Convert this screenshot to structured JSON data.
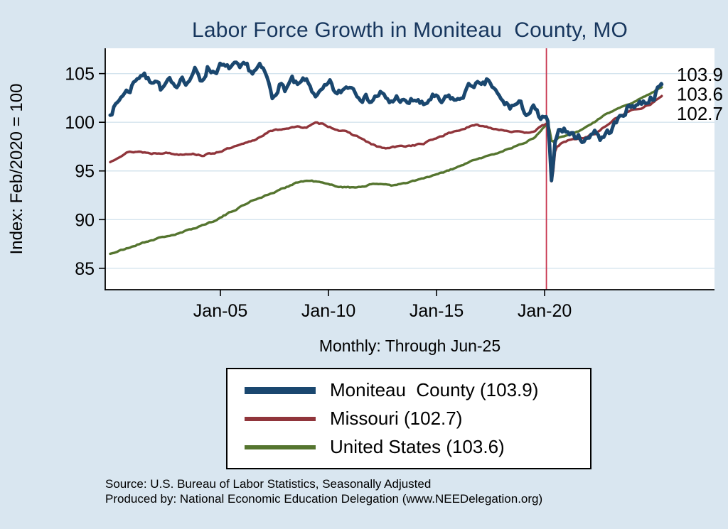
{
  "notes": {
    "source_line1": "Source: U.S. Bureau of Labor Statistics, Seasonally Adjusted",
    "source_line2": "Produced by: National Economic Education Delegation (www.NEEDelegation.org)"
  },
  "legend": {
    "items": [
      {
        "label": "Moniteau  County (103.9)",
        "color": "#1a476f",
        "swatch_height": 10
      },
      {
        "label": "Missouri (102.7)",
        "color": "#90353b",
        "swatch_height": 6
      },
      {
        "label": "United States (103.6)",
        "color": "#55752f",
        "swatch_height": 6
      }
    ]
  },
  "colors": {
    "background": "#d9e6f0",
    "plot_bg": "#ffffff",
    "grid": "#d4e4ee",
    "title": "#17365d",
    "axis": "#000000",
    "vline": "#c8374f"
  },
  "chart_data": {
    "type": "line",
    "title": "Labor Force Growth in Moniteau  County, MO",
    "subtitle": "Monthly: Through Jun-25",
    "xlabel": "",
    "ylabel": "Index: Feb/2020 = 100",
    "x_tick_years": [
      2005,
      2010,
      2015,
      2020
    ],
    "x_tick_labels": [
      "Jan-05",
      "Jan-10",
      "Jan-15",
      "Jan-20"
    ],
    "y_ticks": [
      85,
      90,
      95,
      100,
      105
    ],
    "ylim": [
      82.8,
      107.6
    ],
    "xlim_years": [
      1999.67,
      2027.86
    ],
    "grid": true,
    "legend_position": "below",
    "vline_year": 2020.083,
    "end_labels": [
      {
        "text": "103.9",
        "y": 104.9
      },
      {
        "text": "103.6",
        "y": 102.9
      },
      {
        "text": "102.7",
        "y": 100.9
      }
    ],
    "series": [
      {
        "id": "moniteau-county",
        "name": "Moniteau County",
        "color": "#1a476f",
        "width": 5,
        "jitter": 0.38,
        "seed": 7,
        "end_value": 103.9,
        "keypoints": [
          [
            1999.9,
            101.1
          ],
          [
            2000.2,
            101.8
          ],
          [
            2000.5,
            103.0
          ],
          [
            2000.8,
            103.3
          ],
          [
            2001.1,
            104.6
          ],
          [
            2001.4,
            105.0
          ],
          [
            2001.7,
            104.2
          ],
          [
            2002.0,
            104.6
          ],
          [
            2002.3,
            103.3
          ],
          [
            2002.6,
            104.3
          ],
          [
            2002.9,
            103.2
          ],
          [
            2003.2,
            104.9
          ],
          [
            2003.5,
            104.1
          ],
          [
            2003.8,
            105.4
          ],
          [
            2004.1,
            104.1
          ],
          [
            2004.4,
            105.6
          ],
          [
            2004.7,
            105.2
          ],
          [
            2005.0,
            105.8
          ],
          [
            2005.3,
            105.4
          ],
          [
            2005.6,
            105.9
          ],
          [
            2005.9,
            105.3
          ],
          [
            2006.2,
            105.7
          ],
          [
            2006.5,
            105.1
          ],
          [
            2006.8,
            105.6
          ],
          [
            2007.1,
            104.9
          ],
          [
            2007.4,
            102.5
          ],
          [
            2007.7,
            103.9
          ],
          [
            2008.0,
            103.4
          ],
          [
            2008.3,
            104.3
          ],
          [
            2008.6,
            103.5
          ],
          [
            2008.9,
            104.4
          ],
          [
            2009.2,
            103.4
          ],
          [
            2009.5,
            102.7
          ],
          [
            2009.8,
            103.3
          ],
          [
            2010.1,
            103.9
          ],
          [
            2010.4,
            102.7
          ],
          [
            2010.7,
            103.4
          ],
          [
            2011.0,
            103.9
          ],
          [
            2011.3,
            103.2
          ],
          [
            2011.6,
            102.6
          ],
          [
            2012.0,
            102.3
          ],
          [
            2012.4,
            103.0
          ],
          [
            2012.8,
            101.9
          ],
          [
            2013.2,
            102.6
          ],
          [
            2013.6,
            101.8
          ],
          [
            2014.0,
            102.4
          ],
          [
            2014.4,
            101.6
          ],
          [
            2014.8,
            102.7
          ],
          [
            2015.2,
            101.9
          ],
          [
            2015.6,
            102.6
          ],
          [
            2016.0,
            102.1
          ],
          [
            2016.4,
            103.4
          ],
          [
            2016.8,
            104.1
          ],
          [
            2017.1,
            103.4
          ],
          [
            2017.4,
            104.3
          ],
          [
            2017.7,
            103.2
          ],
          [
            2018.0,
            102.1
          ],
          [
            2018.4,
            101.6
          ],
          [
            2018.8,
            101.9
          ],
          [
            2019.2,
            100.9
          ],
          [
            2019.5,
            101.4
          ],
          [
            2019.8,
            100.3
          ],
          [
            2020.08,
            100.2
          ],
          [
            2020.17,
            100.0
          ],
          [
            2020.33,
            92.9
          ],
          [
            2020.5,
            98.6
          ],
          [
            2020.75,
            99.6
          ],
          [
            2021.0,
            99.1
          ],
          [
            2021.3,
            98.7
          ],
          [
            2021.6,
            98.4
          ],
          [
            2022.0,
            98.2
          ],
          [
            2022.3,
            99.4
          ],
          [
            2022.6,
            98.3
          ],
          [
            2023.0,
            99.1
          ],
          [
            2023.4,
            100.2
          ],
          [
            2023.8,
            101.4
          ],
          [
            2024.2,
            101.9
          ],
          [
            2024.6,
            102.1
          ],
          [
            2025.0,
            102.6
          ],
          [
            2025.25,
            103.3
          ],
          [
            2025.42,
            103.9
          ]
        ]
      },
      {
        "id": "missouri",
        "name": "Missouri",
        "color": "#90353b",
        "width": 3.4,
        "jitter": 0.07,
        "seed": 13,
        "end_value": 102.7,
        "keypoints": [
          [
            1999.9,
            95.9
          ],
          [
            2000.3,
            96.5
          ],
          [
            2000.7,
            96.9
          ],
          [
            2001.2,
            97.0
          ],
          [
            2001.8,
            96.8
          ],
          [
            2002.4,
            96.9
          ],
          [
            2003.0,
            96.7
          ],
          [
            2003.6,
            96.8
          ],
          [
            2004.2,
            96.6
          ],
          [
            2004.8,
            96.9
          ],
          [
            2005.4,
            97.3
          ],
          [
            2006.0,
            97.7
          ],
          [
            2006.6,
            98.2
          ],
          [
            2007.2,
            99.0
          ],
          [
            2007.8,
            99.3
          ],
          [
            2008.4,
            99.5
          ],
          [
            2009.0,
            99.5
          ],
          [
            2009.4,
            99.9
          ],
          [
            2009.8,
            99.8
          ],
          [
            2010.2,
            99.4
          ],
          [
            2010.8,
            99.0
          ],
          [
            2011.4,
            98.5
          ],
          [
            2012.0,
            97.7
          ],
          [
            2012.6,
            97.3
          ],
          [
            2013.2,
            97.5
          ],
          [
            2013.8,
            97.6
          ],
          [
            2014.4,
            97.8
          ],
          [
            2015.0,
            98.4
          ],
          [
            2015.6,
            98.9
          ],
          [
            2016.2,
            99.3
          ],
          [
            2016.8,
            99.7
          ],
          [
            2017.2,
            99.6
          ],
          [
            2017.8,
            99.3
          ],
          [
            2018.4,
            99.1
          ],
          [
            2019.0,
            98.9
          ],
          [
            2019.5,
            99.1
          ],
          [
            2019.9,
            99.6
          ],
          [
            2020.17,
            100.0
          ],
          [
            2020.33,
            93.3
          ],
          [
            2020.5,
            97.3
          ],
          [
            2020.8,
            97.9
          ],
          [
            2021.2,
            98.2
          ],
          [
            2021.8,
            98.4
          ],
          [
            2022.4,
            98.9
          ],
          [
            2023.0,
            99.9
          ],
          [
            2023.5,
            100.7
          ],
          [
            2024.0,
            101.2
          ],
          [
            2024.5,
            101.5
          ],
          [
            2025.0,
            102.0
          ],
          [
            2025.42,
            102.7
          ]
        ]
      },
      {
        "id": "united-states",
        "name": "United States",
        "color": "#55752f",
        "width": 3.4,
        "jitter": 0.06,
        "seed": 21,
        "end_value": 103.6,
        "keypoints": [
          [
            1999.9,
            86.5
          ],
          [
            2000.5,
            86.9
          ],
          [
            2001.0,
            87.3
          ],
          [
            2001.5,
            87.7
          ],
          [
            2002.0,
            88.0
          ],
          [
            2002.5,
            88.3
          ],
          [
            2003.0,
            88.5
          ],
          [
            2003.5,
            88.9
          ],
          [
            2004.0,
            89.3
          ],
          [
            2004.5,
            89.7
          ],
          [
            2005.0,
            90.2
          ],
          [
            2005.5,
            90.8
          ],
          [
            2006.0,
            91.4
          ],
          [
            2006.5,
            92.0
          ],
          [
            2007.0,
            92.4
          ],
          [
            2007.5,
            92.8
          ],
          [
            2008.0,
            93.3
          ],
          [
            2008.5,
            93.8
          ],
          [
            2009.0,
            94.0
          ],
          [
            2009.5,
            93.9
          ],
          [
            2010.0,
            93.6
          ],
          [
            2010.5,
            93.4
          ],
          [
            2011.0,
            93.3
          ],
          [
            2011.5,
            93.4
          ],
          [
            2012.0,
            93.6
          ],
          [
            2012.5,
            93.7
          ],
          [
            2013.0,
            93.5
          ],
          [
            2013.5,
            93.7
          ],
          [
            2014.0,
            94.0
          ],
          [
            2014.5,
            94.3
          ],
          [
            2015.0,
            94.6
          ],
          [
            2015.5,
            95.0
          ],
          [
            2016.0,
            95.4
          ],
          [
            2016.5,
            95.9
          ],
          [
            2017.0,
            96.3
          ],
          [
            2017.5,
            96.6
          ],
          [
            2018.0,
            97.0
          ],
          [
            2018.5,
            97.4
          ],
          [
            2019.0,
            97.8
          ],
          [
            2019.5,
            98.4
          ],
          [
            2019.9,
            99.4
          ],
          [
            2020.17,
            100.0
          ],
          [
            2020.33,
            98.0
          ],
          [
            2020.6,
            98.4
          ],
          [
            2021.0,
            98.6
          ],
          [
            2021.5,
            99.0
          ],
          [
            2022.0,
            99.6
          ],
          [
            2022.5,
            100.3
          ],
          [
            2023.0,
            101.0
          ],
          [
            2023.5,
            101.5
          ],
          [
            2024.0,
            102.0
          ],
          [
            2024.5,
            102.5
          ],
          [
            2025.0,
            103.1
          ],
          [
            2025.42,
            103.6
          ]
        ]
      }
    ]
  }
}
